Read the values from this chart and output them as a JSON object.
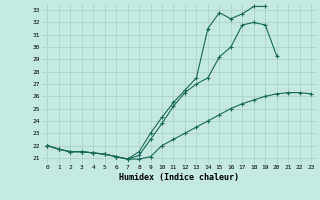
{
  "title": "",
  "xlabel": "Humidex (Indice chaleur)",
  "background_color": "#c5e8e0",
  "grid_color": "#a8cfc8",
  "line_color": "#1a6b5a",
  "xlim": [
    -0.5,
    23.5
  ],
  "ylim": [
    20.5,
    33.5
  ],
  "xticks": [
    0,
    1,
    2,
    3,
    4,
    5,
    6,
    7,
    8,
    9,
    10,
    11,
    12,
    13,
    14,
    15,
    16,
    17,
    18,
    19,
    20,
    21,
    22,
    23
  ],
  "yticks": [
    21,
    22,
    23,
    24,
    25,
    26,
    27,
    28,
    29,
    30,
    31,
    32,
    33
  ],
  "series1_x": [
    0,
    1,
    2,
    3,
    4,
    5,
    6,
    7,
    8,
    9,
    10,
    11,
    12,
    13,
    14,
    15,
    16,
    17,
    18,
    19,
    20,
    21,
    22,
    23
  ],
  "series1_y": [
    22.0,
    21.7,
    21.5,
    21.5,
    21.4,
    21.3,
    21.1,
    20.9,
    20.9,
    21.1,
    22.0,
    22.5,
    23.0,
    23.5,
    24.0,
    24.5,
    25.0,
    25.4,
    25.7,
    26.0,
    26.2,
    26.3,
    26.3,
    26.2
  ],
  "series2_x": [
    0,
    1,
    2,
    3,
    4,
    5,
    6,
    7,
    8,
    9,
    10,
    11,
    12,
    13,
    14,
    15,
    16,
    17,
    18,
    19,
    20
  ],
  "series2_y": [
    22.0,
    21.7,
    21.5,
    21.5,
    21.4,
    21.3,
    21.1,
    20.9,
    21.2,
    22.5,
    23.8,
    25.2,
    26.3,
    27.0,
    27.5,
    29.2,
    30.0,
    31.8,
    32.0,
    31.8,
    29.3
  ],
  "series3_x": [
    0,
    1,
    2,
    3,
    4,
    5,
    6,
    7,
    8,
    9,
    10,
    11,
    12,
    13,
    14,
    15,
    16,
    17,
    18,
    19
  ],
  "series3_y": [
    22.0,
    21.7,
    21.5,
    21.5,
    21.4,
    21.3,
    21.1,
    20.9,
    21.5,
    23.0,
    24.3,
    25.5,
    26.5,
    27.5,
    31.5,
    32.8,
    32.3,
    32.7,
    33.3,
    33.3
  ]
}
